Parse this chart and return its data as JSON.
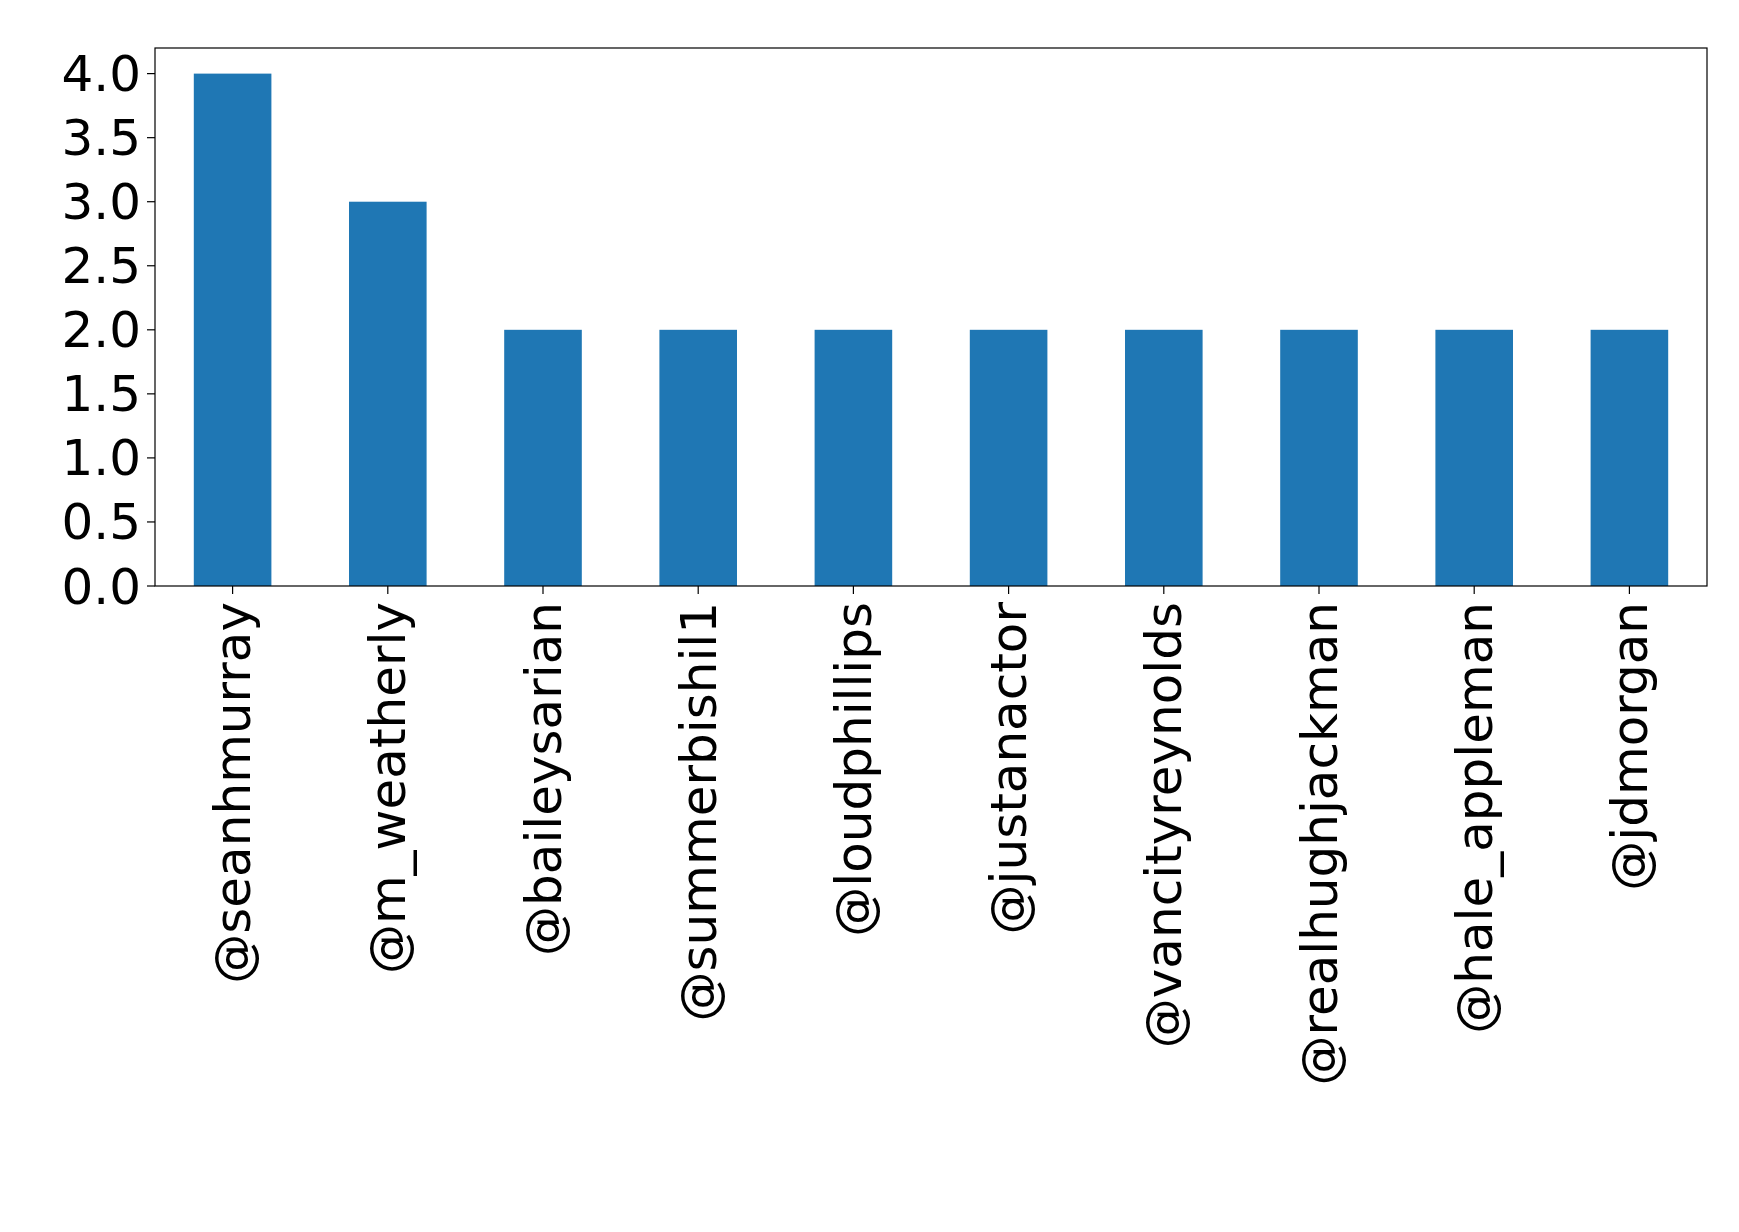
{
  "chart_data": {
    "type": "bar",
    "categories": [
      "@seanhmurray",
      "@m_weatherly",
      "@baileysarian",
      "@summerbishil1",
      "@loudphillips",
      "@justanactor",
      "@vancityreynolds",
      "@realhughjackman",
      "@hale_appleman",
      "@jdmorgan"
    ],
    "values": [
      4,
      3,
      2,
      2,
      2,
      2,
      2,
      2,
      2,
      2
    ],
    "color": "#1f77b4",
    "ylim": [
      0,
      4.2
    ],
    "yticks": [
      {
        "value": 0,
        "label": "0.0"
      },
      {
        "value": 0.5,
        "label": "0.5"
      },
      {
        "value": 1,
        "label": "1.0"
      },
      {
        "value": 1.5,
        "label": "1.5"
      },
      {
        "value": 2,
        "label": "2.0"
      },
      {
        "value": 2.5,
        "label": "2.5"
      },
      {
        "value": 3,
        "label": "3.0"
      },
      {
        "value": 3.5,
        "label": "3.5"
      },
      {
        "value": 4,
        "label": "4.0"
      }
    ],
    "grid": false
  }
}
